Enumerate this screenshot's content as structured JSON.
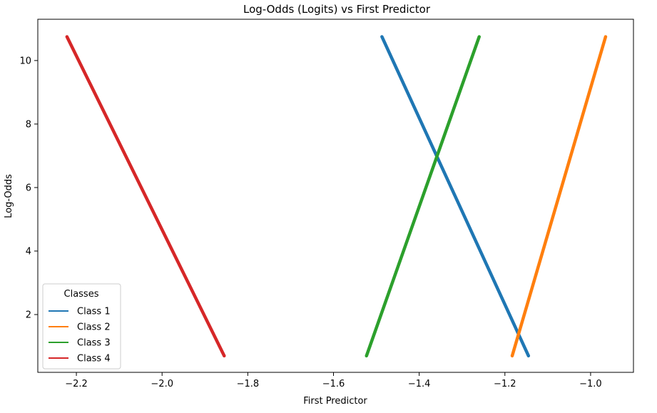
{
  "chart_data": {
    "type": "line",
    "title": "Log-Odds (Logits) vs First Predictor",
    "xlabel": "First Predictor",
    "ylabel": "Log-Odds",
    "xlim": [
      -2.29,
      -0.9
    ],
    "ylim": [
      0.18,
      11.3
    ],
    "x_ticks": [
      -2.2,
      -2.0,
      -1.8,
      -1.6,
      -1.4,
      -1.2,
      -1.0
    ],
    "x_tick_labels": [
      "−2.2",
      "−2.0",
      "−1.8",
      "−1.6",
      "−1.4",
      "−1.2",
      "−1.0"
    ],
    "y_ticks": [
      2,
      4,
      6,
      8,
      10
    ],
    "y_tick_labels": [
      "2",
      "4",
      "6",
      "8",
      "10"
    ],
    "grid": false,
    "legend": {
      "title": "Classes",
      "placement": "lower-left"
    },
    "series": [
      {
        "name": "Class 1",
        "color": "#1f77b4",
        "x": [
          -1.145,
          -1.487
        ],
        "y": [
          0.7,
          10.75
        ]
      },
      {
        "name": "Class 2",
        "color": "#ff7f0e",
        "x": [
          -1.183,
          -0.965
        ],
        "y": [
          0.7,
          10.75
        ]
      },
      {
        "name": "Class 3",
        "color": "#2ca02c",
        "x": [
          -1.523,
          -1.26
        ],
        "y": [
          0.7,
          10.75
        ]
      },
      {
        "name": "Class 4",
        "color": "#d62728",
        "x": [
          -1.855,
          -2.222
        ],
        "y": [
          0.7,
          10.75
        ]
      }
    ]
  }
}
